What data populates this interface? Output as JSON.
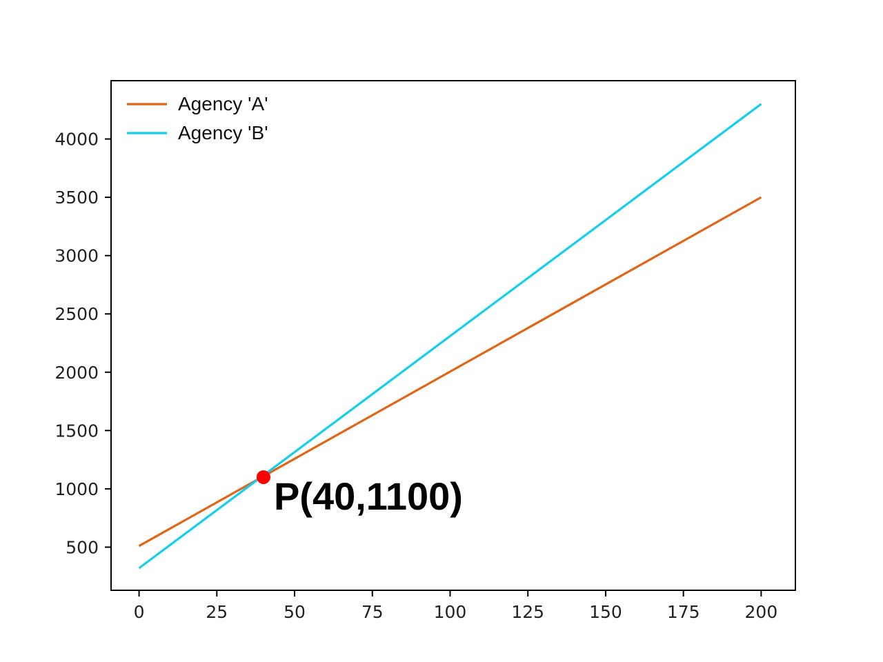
{
  "chart_data": {
    "type": "line",
    "title": "",
    "xlabel": "",
    "ylabel": "",
    "xlim": [
      -9,
      211
    ],
    "ylim": [
      130,
      4500
    ],
    "x_ticks": [
      0,
      25,
      50,
      75,
      100,
      125,
      150,
      175,
      200
    ],
    "y_ticks": [
      500,
      1000,
      1500,
      2000,
      2500,
      3000,
      3500,
      4000
    ],
    "grid": false,
    "legend": "top-left",
    "series": [
      {
        "name": "Agency 'A'",
        "color": "#e36414",
        "x": [
          0,
          200
        ],
        "y": [
          510,
          3500
        ]
      },
      {
        "name": "Agency 'B'",
        "color": "#12cfee",
        "x": [
          0,
          200
        ],
        "y": [
          320,
          4300
        ]
      }
    ],
    "point": {
      "x": 40,
      "y": 1100,
      "color": "#ff0000",
      "label": "P(40,1100)"
    }
  }
}
